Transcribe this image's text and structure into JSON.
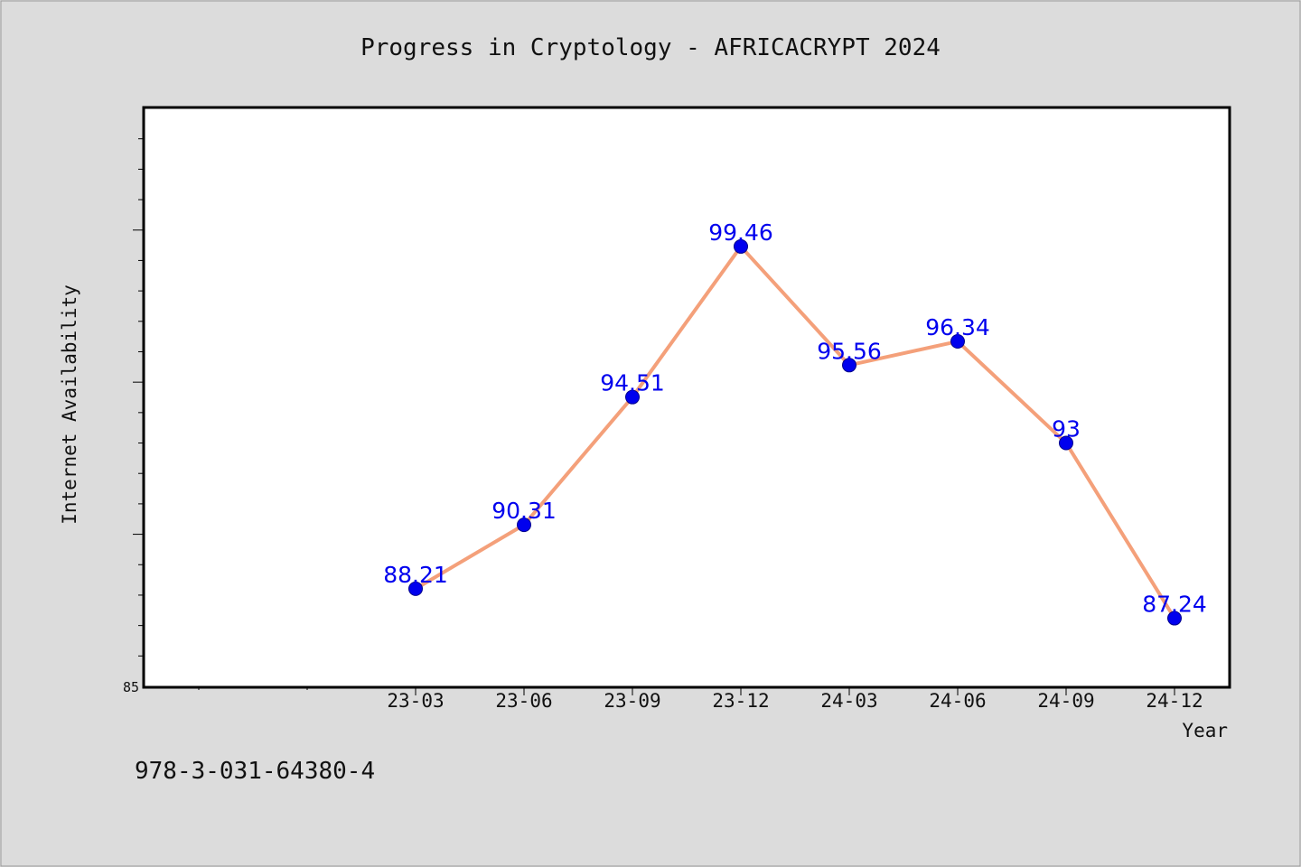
{
  "chart_data": {
    "type": "line",
    "title": "Progress in Cryptology - AFRICACRYPT 2024",
    "xlabel": "Year",
    "ylabel": "Internet Availability",
    "categories": [
      "23-03",
      "23-06",
      "23-09",
      "23-12",
      "24-03",
      "24-06",
      "24-09",
      "24-12"
    ],
    "series": [
      {
        "values": [
          88.21,
          90.31,
          94.51,
          99.46,
          95.56,
          96.34,
          93,
          87.24
        ],
        "labels": [
          "88.21",
          "90.31",
          "94.51",
          "99.46",
          "95.56",
          "96.34",
          "93",
          "87.24"
        ]
      }
    ],
    "ylim": [
      85,
      104
    ],
    "y_tick_labels": [
      "85"
    ],
    "grid": false,
    "legend": "none",
    "colors": {
      "line": "#f4a07a",
      "marker": "#0000ee",
      "label": "#0000ee",
      "background": "#dcdcdc",
      "plot_background": "#ffffff"
    }
  },
  "footer": {
    "isbn": "978-3-031-64380-4"
  }
}
